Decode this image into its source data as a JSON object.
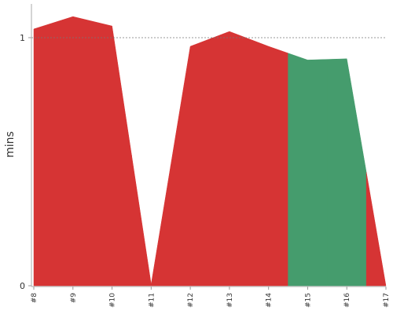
{
  "chart_data": {
    "type": "area",
    "y_label": "mins",
    "categories": [
      "#8",
      "#9",
      "#10",
      "#11",
      "#12",
      "#13",
      "#14",
      "#15",
      "#16",
      "#17"
    ],
    "values": [
      1.035,
      1.085,
      1.047,
      0.006,
      0.965,
      1.025,
      0.965,
      0.91,
      0.915,
      0
    ],
    "colors": [
      "#d63434",
      "#d63434",
      "#d63434",
      "#d63434",
      "#d63434",
      "#d63434",
      "#d63434",
      "#459c6d",
      "#459c6d",
      "#d63434"
    ],
    "ylim": [
      0,
      1.136
    ],
    "yticks": [
      0,
      1
    ],
    "grid_dashed": true
  }
}
